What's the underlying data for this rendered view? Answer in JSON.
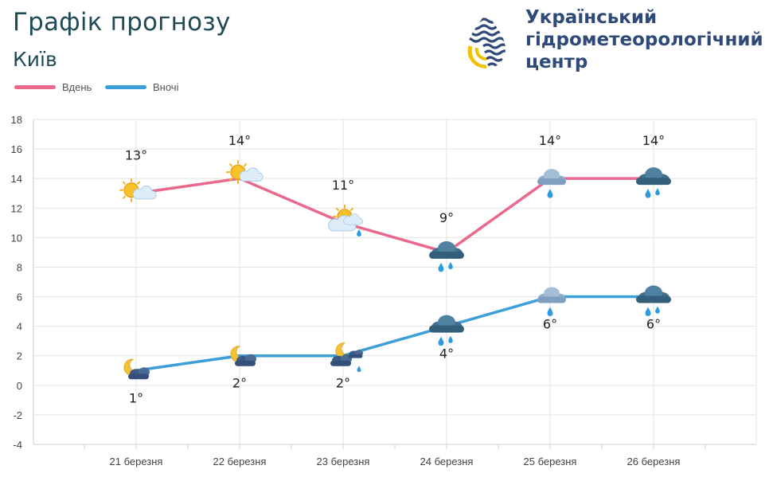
{
  "header": {
    "title": "Графік прогнозу",
    "city": "Київ"
  },
  "logo": {
    "line1": "Український",
    "line2": "гідрометеорологічний",
    "line3": "центр"
  },
  "legend": {
    "day": "Вдень",
    "night": "Вночі"
  },
  "colors": {
    "day": "#e8698c",
    "night": "#3d9fd8",
    "title": "#1f4a56",
    "logo": "#2f4a78"
  },
  "chart_data": {
    "type": "line",
    "title": "Графік прогнозу",
    "subtitle": "Київ",
    "xlabel": "",
    "ylabel": "",
    "ylim": [
      -4,
      18
    ],
    "yticks": [
      -4,
      -2,
      0,
      2,
      4,
      6,
      8,
      10,
      12,
      14,
      16,
      18
    ],
    "grid": true,
    "legend_position": "top-left",
    "categories": [
      "21 березня",
      "22 березня",
      "23 березня",
      "24 березня",
      "25 березня",
      "26 березня"
    ],
    "series": [
      {
        "name": "Вдень",
        "values": [
          13,
          14,
          11,
          9,
          14,
          14
        ],
        "labels": [
          "13°",
          "14°",
          "11°",
          "9°",
          "14°",
          "14°"
        ],
        "icons": [
          "sun-partly-cloudy-icon",
          "sun-partly-cloudy-icon",
          "sun-cloud-rain-icon",
          "dark-cloud-rain-icon",
          "cloud-rain-icon",
          "dark-cloud-rain-icon"
        ]
      },
      {
        "name": "Вночі",
        "values": [
          1,
          2,
          2,
          4,
          6,
          6
        ],
        "labels": [
          "1°",
          "2°",
          "2°",
          "4°",
          "6°",
          "6°"
        ],
        "icons": [
          "moon-cloud-icon",
          "moon-cloud-icon",
          "moon-cloud-rain-icon",
          "dark-cloud-rain-icon",
          "cloud-rain-icon",
          "dark-cloud-rain-icon"
        ]
      }
    ]
  }
}
